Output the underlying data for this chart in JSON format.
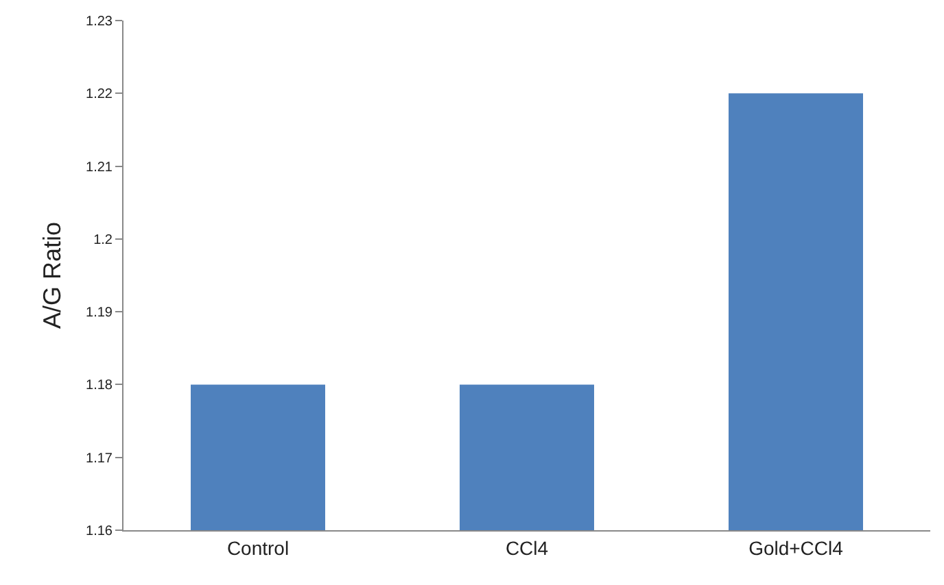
{
  "chart_data": {
    "type": "bar",
    "ylabel": "A/G Ratio",
    "categories": [
      "Control",
      "CCl4",
      "Gold+CCl4"
    ],
    "values": [
      1.18,
      1.18,
      1.22
    ],
    "color": "#4f81bd",
    "ylim": [
      1.16,
      1.23
    ],
    "yticks": [
      1.16,
      1.17,
      1.18,
      1.19,
      1.2,
      1.21,
      1.22,
      1.23
    ],
    "grid": false
  }
}
